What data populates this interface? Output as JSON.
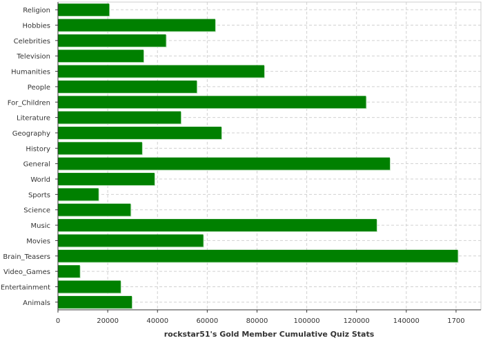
{
  "chart_data": {
    "type": "bar",
    "orientation": "horizontal",
    "title": "",
    "xlabel": "rockstar51's Gold Member Cumulative Quiz Stats",
    "ylabel": "",
    "xlim": [
      0,
      170000
    ],
    "x_ticks": [
      "0",
      "20000",
      "40000",
      "60000",
      "80000",
      "100000",
      "120000",
      "140000",
      "1700"
    ],
    "grid": true,
    "legend": "none",
    "bar_color": "#008000",
    "categories": [
      "Religion",
      "Hobbies",
      "Celebrities",
      "Television",
      "Humanities",
      "People",
      "For_Children",
      "Literature",
      "Geography",
      "History",
      "General",
      "World",
      "Sports",
      "Science",
      "Music",
      "Movies",
      "Brain_Teasers",
      "Video_Games",
      "Entertainment",
      "Animals"
    ],
    "values": [
      20600,
      63200,
      43400,
      34400,
      82900,
      55800,
      123800,
      49400,
      65700,
      33800,
      133400,
      38800,
      16300,
      29200,
      128100,
      58400,
      160700,
      8800,
      25200,
      29700
    ]
  }
}
